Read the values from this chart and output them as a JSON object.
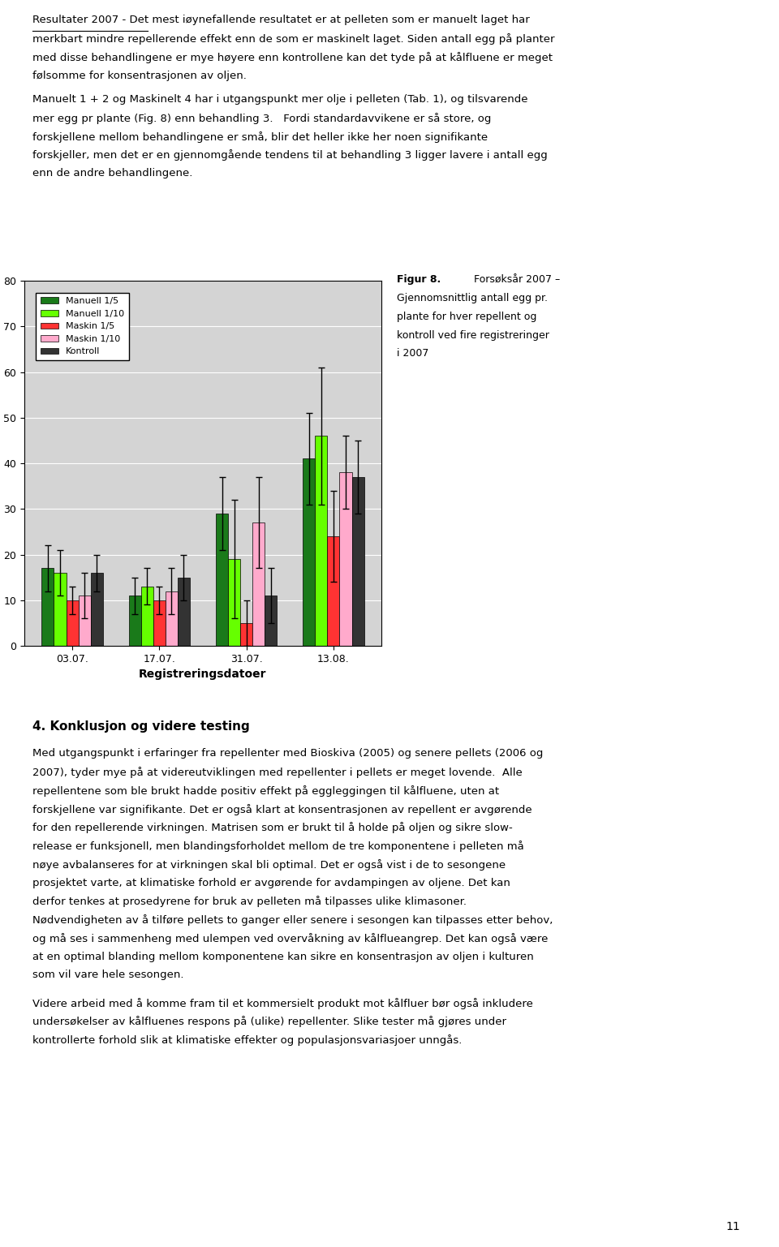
{
  "categories": [
    "03.07.",
    "17.07.",
    "31.07.",
    "13.08."
  ],
  "series": {
    "Manuell 1/5": [
      17,
      11,
      29,
      41
    ],
    "Manuell 1/10": [
      16,
      13,
      19,
      46
    ],
    "Maskin 1/5": [
      10,
      10,
      5,
      24
    ],
    "Maskin 1/10": [
      11,
      12,
      27,
      38
    ],
    "Kontroll": [
      16,
      15,
      11,
      37
    ]
  },
  "errors": {
    "Manuell 1/5": [
      5,
      4,
      8,
      10
    ],
    "Manuell 1/10": [
      5,
      4,
      13,
      15
    ],
    "Maskin 1/5": [
      3,
      3,
      5,
      10
    ],
    "Maskin 1/10": [
      5,
      5,
      10,
      8
    ],
    "Kontroll": [
      4,
      5,
      6,
      8
    ]
  },
  "colors": {
    "Manuell 1/5": "#1a7a1a",
    "Manuell 1/10": "#66ff00",
    "Maskin 1/5": "#ff3333",
    "Maskin 1/10": "#ffaacc",
    "Kontroll": "#333333"
  },
  "ylabel": "Gjennomsnittlig antall egg pr. plante",
  "xlabel": "Registreringsdatoer",
  "ylim": [
    0,
    80
  ],
  "yticks": [
    0,
    10,
    20,
    30,
    40,
    50,
    60,
    70,
    80
  ],
  "background_color": "#d4d4d4",
  "plot_background": "#d4d4d4",
  "text_block_1": "Resultater 2007 - Det mest iøynefallende resultatet er at pelleten som er manuelt laget har\nmerkbart mindre repellerende effekt enn de som er maskinelt laget. Siden antall egg på planter\nmed disse behandlingene er mye høyere enn kontrollene kan det tyde på at kålfluene er meget\nfølsomme for konsentrasjonen av oljen.",
  "text_block_2": "Manuelt 1 + 2 og Maskinelt 4 har i utgangspunkt mer olje i pelleten (Tab. 1), og tilsvarende\nmer egg pr plante (Fig. 8) enn behandling 3.   Fordi standardavvikene er så store, og\nforskjellene mellom behandlingene er små, blir det heller ikke her noen signifikante\nforskjeller, men det er en gjennomgående tendens til at behandling 3 ligger lavere i antall egg\nenn de andre behandlingene.",
  "section_title": "4. Konklusjon og videre testing",
  "text_block_3": "Med utgangspunkt i erfaringer fra repellenter med Bioskiva (2005) og senere pellets (2006 og\n2007), tyder mye på at videreutviklingen med repellenter i pellets er meget lovende.  Alle\nrepellentene som ble brukt hadde positiv effekt på eggleggingen til kålfluene, uten at\nforskjellene var signifikante. Det er også klart at konsentrasjonen av repellent er avgørende\nfor den repellerende virkningen. Matrisen som er brukt til å holde på oljen og sikre slow-\nrelease er funksjonell, men blandingsforholdet mellom de tre komponentene i pelleten må\nnøye avbalanseres for at virkningen skal bli optimal. Det er også vist i de to sesongene\nprosjektet varte, at klimatiske forhold er avgørende for avdampingen av oljene. Det kan\nderfor tenkes at prosedyrene for bruk av pelleten må tilpasses ulike klimasoner.\nNødvendigheten av å tilføre pellets to ganger eller senere i sesongen kan tilpasses etter behov,\nog må ses i sammenheng med ulempen ved overvåkning av kålflueangrep. Det kan også være\nat en optimal blanding mellom komponentene kan sikre en konsentrasjon av oljen i kulturen\nsom vil vare hele sesongen.",
  "text_block_4": "Videre arbeid med å komme fram til et kommersielt produkt mot kålfluer bør også inkludere\nundersokelser av kålfluenes respons på (ulike) repellenter. Slike tester må gjøres under\nkontrollerte forhold slik at klimatiske effekter og populasjonsvariasjoer unngås.",
  "figcaption_bold": "Figur 8.",
  "figcaption_text": "  Forsøksår 2007 –\nGjennomsnittlig antall egg pr.\nplante for hver repellent og\nkontroll ved fire registreringer\ni 2007",
  "page_number": "11"
}
